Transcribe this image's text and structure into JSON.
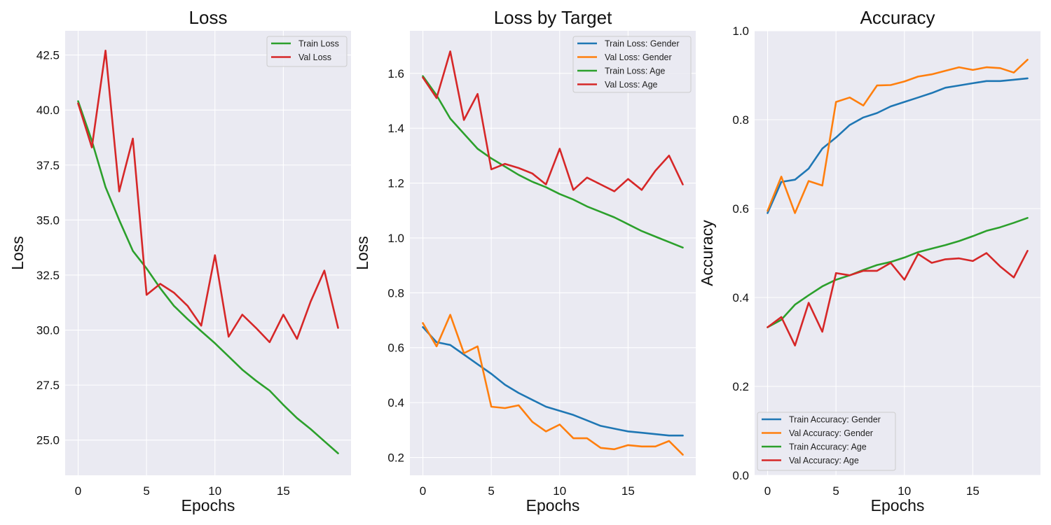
{
  "chart_data": [
    {
      "type": "line",
      "title": "Loss",
      "xlabel": "Epochs",
      "ylabel": "Loss",
      "xlim": [
        -0.95,
        19.95
      ],
      "ylim": [
        23.4,
        43.6
      ],
      "xticks": [
        0,
        5,
        10,
        15
      ],
      "xtick_labels": [
        "0",
        "5",
        "10",
        "15"
      ],
      "yticks": [
        25.0,
        27.5,
        30.0,
        32.5,
        35.0,
        37.5,
        40.0,
        42.5
      ],
      "ytick_labels": [
        "25.0",
        "27.5",
        "30.0",
        "32.5",
        "35.0",
        "37.5",
        "40.0",
        "42.5"
      ],
      "grid": true,
      "legend_position": "top-right",
      "x": [
        0,
        1,
        2,
        3,
        4,
        5,
        6,
        7,
        8,
        9,
        10,
        11,
        12,
        13,
        14,
        15,
        16,
        17,
        18,
        19
      ],
      "series": [
        {
          "name": "Train Loss",
          "color": "#2ca02c",
          "values": [
            40.4,
            38.6,
            36.5,
            35.0,
            33.6,
            32.8,
            31.9,
            31.1,
            30.5,
            29.95,
            29.4,
            28.8,
            28.2,
            27.7,
            27.25,
            26.6,
            26.0,
            25.5,
            24.95,
            24.4
          ]
        },
        {
          "name": "Val Loss",
          "color": "#d62728",
          "values": [
            40.3,
            38.3,
            42.7,
            36.3,
            38.7,
            31.6,
            32.1,
            31.7,
            31.1,
            30.2,
            33.4,
            29.7,
            30.7,
            30.1,
            29.45,
            30.7,
            29.6,
            31.3,
            32.7,
            30.1
          ]
        }
      ]
    },
    {
      "type": "line",
      "title": "Loss by Target",
      "xlabel": "Epochs",
      "ylabel": "Loss",
      "xlim": [
        -0.95,
        19.95
      ],
      "ylim": [
        0.135,
        1.755
      ],
      "xticks": [
        0,
        5,
        10,
        15
      ],
      "xtick_labels": [
        "0",
        "5",
        "10",
        "15"
      ],
      "yticks": [
        0.2,
        0.4,
        0.6,
        0.8,
        1.0,
        1.2,
        1.4,
        1.6
      ],
      "ytick_labels": [
        "0.2",
        "0.4",
        "0.6",
        "0.8",
        "1.0",
        "1.2",
        "1.4",
        "1.6"
      ],
      "grid": true,
      "legend_position": "top-right",
      "x": [
        0,
        1,
        2,
        3,
        4,
        5,
        6,
        7,
        8,
        9,
        10,
        11,
        12,
        13,
        14,
        15,
        16,
        17,
        18,
        19
      ],
      "series": [
        {
          "name": "Train Loss: Gender",
          "color": "#1f77b4",
          "values": [
            0.675,
            0.62,
            0.61,
            0.575,
            0.54,
            0.505,
            0.465,
            0.435,
            0.41,
            0.385,
            0.37,
            0.355,
            0.335,
            0.315,
            0.305,
            0.295,
            0.29,
            0.285,
            0.28,
            0.28
          ]
        },
        {
          "name": "Val Loss: Gender",
          "color": "#ff7f0e",
          "values": [
            0.69,
            0.605,
            0.72,
            0.58,
            0.605,
            0.385,
            0.38,
            0.39,
            0.33,
            0.295,
            0.32,
            0.27,
            0.27,
            0.235,
            0.23,
            0.245,
            0.24,
            0.24,
            0.26,
            0.21
          ]
        },
        {
          "name": "Train Loss: Age",
          "color": "#2ca02c",
          "values": [
            1.59,
            1.52,
            1.435,
            1.38,
            1.325,
            1.29,
            1.26,
            1.23,
            1.205,
            1.185,
            1.16,
            1.14,
            1.115,
            1.095,
            1.075,
            1.05,
            1.025,
            1.005,
            0.985,
            0.965
          ]
        },
        {
          "name": "Val Loss: Age",
          "color": "#d62728",
          "values": [
            1.585,
            1.51,
            1.68,
            1.43,
            1.525,
            1.25,
            1.27,
            1.255,
            1.235,
            1.195,
            1.325,
            1.175,
            1.22,
            1.195,
            1.17,
            1.215,
            1.175,
            1.245,
            1.3,
            1.195
          ]
        }
      ]
    },
    {
      "type": "line",
      "title": "Accuracy",
      "xlabel": "Epochs",
      "ylabel": "Accuracy",
      "xlim": [
        -0.95,
        19.95
      ],
      "ylim": [
        0,
        1
      ],
      "xticks": [
        0,
        5,
        10,
        15
      ],
      "xtick_labels": [
        "0",
        "5",
        "10",
        "15"
      ],
      "yticks": [
        0.0,
        0.2,
        0.4,
        0.6,
        0.8,
        1.0
      ],
      "ytick_labels": [
        "0.0",
        "0.2",
        "0.4",
        "0.6",
        "0.8",
        "1.0"
      ],
      "grid": true,
      "legend_position": "bottom-left",
      "x": [
        0,
        1,
        2,
        3,
        4,
        5,
        6,
        7,
        8,
        9,
        10,
        11,
        12,
        13,
        14,
        15,
        16,
        17,
        18,
        19
      ],
      "series": [
        {
          "name": "Train Accuracy: Gender",
          "color": "#1f77b4",
          "values": [
            0.59,
            0.66,
            0.665,
            0.69,
            0.735,
            0.76,
            0.788,
            0.805,
            0.815,
            0.83,
            0.84,
            0.85,
            0.86,
            0.872,
            0.877,
            0.882,
            0.887,
            0.887,
            0.89,
            0.893
          ]
        },
        {
          "name": "Val Accuracy: Gender",
          "color": "#ff7f0e",
          "values": [
            0.595,
            0.672,
            0.59,
            0.662,
            0.652,
            0.84,
            0.85,
            0.832,
            0.877,
            0.878,
            0.886,
            0.897,
            0.902,
            0.91,
            0.918,
            0.912,
            0.918,
            0.916,
            0.906,
            0.935
          ]
        },
        {
          "name": "Train Accuracy: Age",
          "color": "#2ca02c",
          "values": [
            0.333,
            0.35,
            0.384,
            0.405,
            0.425,
            0.44,
            0.45,
            0.462,
            0.473,
            0.48,
            0.49,
            0.502,
            0.51,
            0.518,
            0.527,
            0.538,
            0.55,
            0.558,
            0.568,
            0.579
          ]
        },
        {
          "name": "Val Accuracy: Age",
          "color": "#d62728",
          "values": [
            0.333,
            0.356,
            0.292,
            0.388,
            0.323,
            0.455,
            0.45,
            0.46,
            0.46,
            0.478,
            0.44,
            0.498,
            0.478,
            0.486,
            0.488,
            0.482,
            0.5,
            0.47,
            0.445,
            0.505
          ]
        }
      ]
    }
  ]
}
